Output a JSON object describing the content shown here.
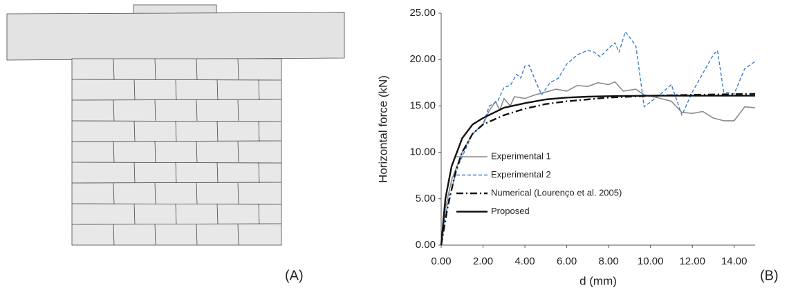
{
  "panel_labels": [
    "(A)",
    "(B)"
  ],
  "chart_data": {
    "type": "line",
    "x_label": "d (mm)",
    "y_label": "Horizontal force (kN)",
    "xlim": [
      0,
      15
    ],
    "ylim": [
      0,
      25
    ],
    "xticks": [
      {
        "value": 0,
        "label": "0.00"
      },
      {
        "value": 2,
        "label": "2.00"
      },
      {
        "value": 4,
        "label": "4.00"
      },
      {
        "value": 6,
        "label": "6.00"
      },
      {
        "value": 8,
        "label": "8.00"
      },
      {
        "value": 10,
        "label": "10.00"
      },
      {
        "value": 12,
        "label": "12.00"
      },
      {
        "value": 14,
        "label": "14.00"
      }
    ],
    "yticks": [
      {
        "value": 0,
        "label": "0.00"
      },
      {
        "value": 5,
        "label": "5.00"
      },
      {
        "value": 10,
        "label": "10.00"
      },
      {
        "value": 15,
        "label": "15.00"
      },
      {
        "value": 20,
        "label": "20.00"
      },
      {
        "value": 25,
        "label": "25.00"
      }
    ],
    "grid": false,
    "series": [
      {
        "name": "Experimental 1",
        "color": "#8a8a8a",
        "line_style": "solid",
        "width": 1.6,
        "x": [
          0,
          0.2,
          0.5,
          1,
          1.5,
          2,
          2.3,
          2.6,
          2.8,
          3,
          3.3,
          3.5,
          4,
          4.5,
          5,
          5.5,
          6,
          6.5,
          7,
          7.5,
          8,
          8.3,
          8.7,
          9.3,
          9.7,
          10.5,
          11,
          11.5,
          12,
          12.5,
          13,
          13.5,
          14,
          14.5,
          15
        ],
        "values": [
          0,
          4,
          7,
          10,
          12,
          13,
          14.5,
          15.5,
          14.5,
          15.8,
          15,
          16,
          15.8,
          16.2,
          16.5,
          16.8,
          16.6,
          17.2,
          17.1,
          17.5,
          17.3,
          17.6,
          16.6,
          16.8,
          16.2,
          15.8,
          15.5,
          14.3,
          14.2,
          14.4,
          13.7,
          13.4,
          13.4,
          14.9,
          14.8
        ]
      },
      {
        "name": "Experimental 2",
        "color": "#3a7dc9",
        "line_style": "dashed",
        "width": 1.4,
        "x": [
          0,
          0.3,
          0.8,
          1.5,
          2,
          2.3,
          2.7,
          3,
          3.3,
          3.6,
          3.8,
          4,
          4.2,
          4.6,
          4.8,
          5.2,
          5.6,
          6,
          6.5,
          7,
          7.3,
          7.6,
          8,
          8.3,
          8.5,
          8.8,
          9.3,
          9.7,
          10.5,
          11,
          11.5,
          12,
          12.5,
          13,
          13.2,
          13.5,
          14,
          14.5,
          15
        ],
        "values": [
          0,
          4.5,
          8.5,
          12,
          13,
          15,
          15.5,
          17,
          17.2,
          18.4,
          18,
          19.3,
          19.4,
          17.2,
          16.2,
          17.5,
          18,
          19.5,
          20.5,
          21,
          20.8,
          20.3,
          21.2,
          21.8,
          20.8,
          23,
          21.5,
          14.9,
          16.3,
          17.3,
          14,
          16.5,
          18.5,
          20.5,
          21,
          16.5,
          16.3,
          19,
          19.8
        ]
      },
      {
        "name": "Numerical (Lourenço et al. 2005)",
        "color": "#111111",
        "line_style": "dashdot",
        "width": 2.4,
        "x": [
          0,
          0.3,
          0.7,
          1,
          1.5,
          2,
          3,
          4,
          5,
          6,
          7,
          8,
          9,
          10,
          12,
          15
        ],
        "values": [
          0,
          4,
          8,
          10,
          12,
          13,
          14,
          14.7,
          15.2,
          15.5,
          15.7,
          15.9,
          16,
          16.1,
          16.2,
          16.3
        ]
      },
      {
        "name": "Proposed",
        "color": "#111111",
        "line_style": "solid",
        "width": 2.4,
        "x": [
          0,
          0.2,
          0.5,
          1,
          1.5,
          2,
          3,
          4,
          5,
          6,
          7,
          8,
          10,
          15
        ],
        "values": [
          0,
          5,
          8.5,
          11.5,
          13,
          13.7,
          14.8,
          15.3,
          15.7,
          15.9,
          16,
          16.05,
          16.1,
          16.1
        ]
      }
    ]
  }
}
